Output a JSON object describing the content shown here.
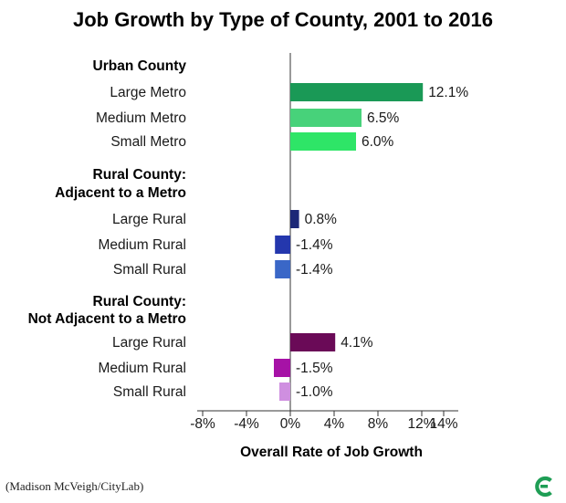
{
  "chart_data": {
    "type": "bar",
    "orientation": "horizontal",
    "title": "Job Growth by Type of County, 2001 to 2016",
    "xlabel": "Overall Rate of Job Growth",
    "ylabel": "",
    "xlim": [
      -9,
      15
    ],
    "ticks": [
      -8,
      -4,
      0,
      4,
      8,
      12,
      14
    ],
    "tick_labels": [
      "-8%",
      "-4%",
      "0%",
      "4%",
      "8%",
      "12%",
      "14%"
    ],
    "groups": [
      {
        "label_lines": [
          "Urban County"
        ],
        "categories": [
          {
            "label": "Large Metro",
            "value": 12.1,
            "value_label": "12.1%",
            "color": "#1a9956"
          },
          {
            "label": "Medium Metro",
            "value": 6.5,
            "value_label": "6.5%",
            "color": "#47d27a"
          },
          {
            "label": "Small Metro",
            "value": 6.0,
            "value_label": "6.0%",
            "color": "#2ee567"
          }
        ]
      },
      {
        "label_lines": [
          "Rural County:",
          "Adjacent to a Metro"
        ],
        "categories": [
          {
            "label": "Large Rural",
            "value": 0.8,
            "value_label": "0.8%",
            "color": "#1c2877"
          },
          {
            "label": "Medium Rural",
            "value": -1.4,
            "value_label": "-1.4%",
            "color": "#2437ad"
          },
          {
            "label": "Small Rural",
            "value": -1.4,
            "value_label": "-1.4%",
            "color": "#3a67c7"
          }
        ]
      },
      {
        "label_lines": [
          "Rural County:",
          "Not Adjacent to a Metro"
        ],
        "categories": [
          {
            "label": "Large Rural",
            "value": 4.1,
            "value_label": "4.1%",
            "color": "#6a0a57"
          },
          {
            "label": "Medium Rural",
            "value": -1.5,
            "value_label": "-1.5%",
            "color": "#a612a6"
          },
          {
            "label": "Small Rural",
            "value": -1.0,
            "value_label": "-1.0%",
            "color": "#cf8fe0"
          }
        ]
      }
    ]
  },
  "credit": "(Madison McVeigh/CityLab)",
  "logo": {
    "name": "citylab-logo",
    "color": "#1f9e55"
  }
}
